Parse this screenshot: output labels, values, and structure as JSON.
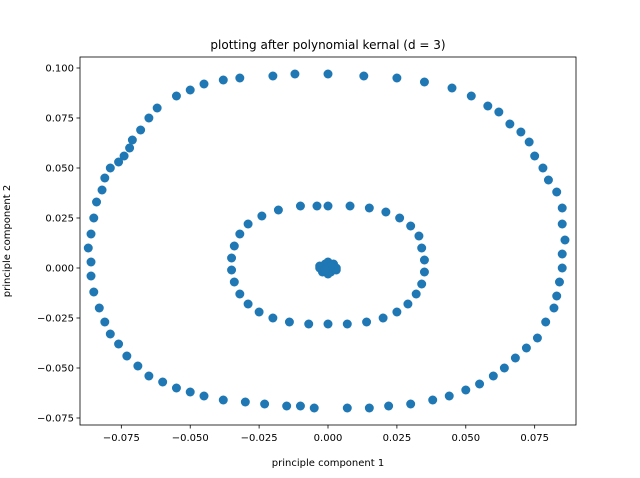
{
  "chart_data": {
    "type": "scatter",
    "title": "plotting after polynomial kernal (d = 3)",
    "xlabel": "principle component 1",
    "ylabel": "principle component 2",
    "xlim": [
      -0.09,
      0.09
    ],
    "ylim": [
      -0.0785,
      0.1055
    ],
    "xticks": [
      -0.075,
      -0.05,
      -0.025,
      0.0,
      0.025,
      0.05,
      0.075
    ],
    "xtick_labels": [
      "−0.075",
      "−0.050",
      "−0.025",
      "0.000",
      "0.025",
      "0.050",
      "0.075"
    ],
    "yticks": [
      -0.075,
      -0.05,
      -0.025,
      0.0,
      0.025,
      0.05,
      0.075,
      0.1
    ],
    "ytick_labels": [
      "−0.075",
      "−0.050",
      "−0.025",
      "0.000",
      "0.025",
      "0.050",
      "0.075",
      "0.100"
    ],
    "grid": false,
    "marker_color": "#1f77b4",
    "series": [
      {
        "points": [
          [
            0.0,
            0.097
          ],
          [
            -0.012,
            0.097
          ],
          [
            -0.02,
            0.096
          ],
          [
            0.013,
            0.096
          ],
          [
            -0.032,
            0.095
          ],
          [
            0.025,
            0.095
          ],
          [
            -0.038,
            0.094
          ],
          [
            0.035,
            0.093
          ],
          [
            -0.045,
            0.092
          ],
          [
            0.045,
            0.09
          ],
          [
            -0.05,
            0.089
          ],
          [
            0.052,
            0.086
          ],
          [
            -0.055,
            0.086
          ],
          [
            0.058,
            0.081
          ],
          [
            -0.062,
            0.08
          ],
          [
            0.062,
            0.078
          ],
          [
            -0.065,
            0.075
          ],
          [
            0.066,
            0.072
          ],
          [
            -0.068,
            0.069
          ],
          [
            0.07,
            0.068
          ],
          [
            -0.071,
            0.064
          ],
          [
            0.073,
            0.063
          ],
          [
            -0.072,
            0.06
          ],
          [
            0.075,
            0.056
          ],
          [
            -0.074,
            0.056
          ],
          [
            0.078,
            0.05
          ],
          [
            -0.076,
            0.053
          ],
          [
            0.08,
            0.044
          ],
          [
            -0.079,
            0.05
          ],
          [
            0.083,
            0.038
          ],
          [
            -0.081,
            0.045
          ],
          [
            0.085,
            0.03
          ],
          [
            -0.082,
            0.039
          ],
          [
            0.085,
            0.022
          ],
          [
            -0.084,
            0.033
          ],
          [
            0.086,
            0.014
          ],
          [
            -0.085,
            0.025
          ],
          [
            0.085,
            0.007
          ],
          [
            -0.086,
            0.017
          ],
          [
            0.085,
            0.0
          ],
          [
            -0.087,
            0.01
          ],
          [
            0.084,
            -0.007
          ],
          [
            -0.086,
            0.003
          ],
          [
            0.083,
            -0.014
          ],
          [
            -0.086,
            -0.004
          ],
          [
            0.082,
            -0.02
          ],
          [
            -0.085,
            -0.012
          ],
          [
            0.079,
            -0.027
          ],
          [
            -0.083,
            -0.02
          ],
          [
            0.076,
            -0.035
          ],
          [
            -0.081,
            -0.027
          ],
          [
            0.072,
            -0.04
          ],
          [
            -0.079,
            -0.033
          ],
          [
            0.068,
            -0.045
          ],
          [
            -0.076,
            -0.038
          ],
          [
            0.064,
            -0.05
          ],
          [
            -0.073,
            -0.044
          ],
          [
            0.06,
            -0.054
          ],
          [
            -0.069,
            -0.049
          ],
          [
            0.055,
            -0.058
          ],
          [
            -0.065,
            -0.054
          ],
          [
            0.05,
            -0.061
          ],
          [
            -0.06,
            -0.057
          ],
          [
            0.044,
            -0.064
          ],
          [
            -0.055,
            -0.06
          ],
          [
            0.038,
            -0.066
          ],
          [
            -0.05,
            -0.062
          ],
          [
            0.03,
            -0.068
          ],
          [
            -0.045,
            -0.064
          ],
          [
            0.022,
            -0.069
          ],
          [
            -0.038,
            -0.066
          ],
          [
            0.015,
            -0.07
          ],
          [
            -0.03,
            -0.067
          ],
          [
            0.007,
            -0.07
          ],
          [
            -0.023,
            -0.068
          ],
          [
            -0.005,
            -0.07
          ],
          [
            -0.015,
            -0.069
          ],
          [
            -0.01,
            -0.069
          ],
          [
            0.0,
            0.031
          ],
          [
            0.008,
            0.031
          ],
          [
            0.015,
            0.03
          ],
          [
            0.021,
            0.028
          ],
          [
            0.026,
            0.025
          ],
          [
            0.03,
            0.021
          ],
          [
            0.033,
            0.016
          ],
          [
            0.034,
            0.01
          ],
          [
            0.035,
            0.004
          ],
          [
            0.035,
            -0.002
          ],
          [
            0.034,
            -0.008
          ],
          [
            0.032,
            -0.013
          ],
          [
            0.029,
            -0.018
          ],
          [
            0.025,
            -0.022
          ],
          [
            0.02,
            -0.025
          ],
          [
            0.014,
            -0.027
          ],
          [
            0.007,
            -0.028
          ],
          [
            0.0,
            -0.028
          ],
          [
            -0.007,
            -0.028
          ],
          [
            -0.014,
            -0.027
          ],
          [
            -0.02,
            -0.025
          ],
          [
            -0.025,
            -0.022
          ],
          [
            -0.029,
            -0.018
          ],
          [
            -0.032,
            -0.013
          ],
          [
            -0.034,
            -0.007
          ],
          [
            -0.035,
            -0.001
          ],
          [
            -0.035,
            0.005
          ],
          [
            -0.034,
            0.011
          ],
          [
            -0.032,
            0.017
          ],
          [
            -0.029,
            0.022
          ],
          [
            -0.024,
            0.026
          ],
          [
            -0.018,
            0.029
          ],
          [
            -0.01,
            0.031
          ],
          [
            -0.004,
            0.031
          ],
          [
            0.0,
            0.0
          ],
          [
            0.002,
            0.001
          ],
          [
            -0.002,
            -0.001
          ],
          [
            0.001,
            -0.002
          ],
          [
            -0.001,
            0.002
          ],
          [
            0.003,
            -0.001
          ],
          [
            -0.003,
            0.001
          ],
          [
            0.002,
            0.002
          ],
          [
            -0.002,
            -0.002
          ],
          [
            0.0,
            0.003
          ],
          [
            0.0,
            -0.003
          ],
          [
            0.003,
            0.0
          ],
          [
            -0.003,
            0.0
          ],
          [
            0.001,
            0.001
          ],
          [
            -0.001,
            -0.001
          ]
        ]
      }
    ]
  }
}
